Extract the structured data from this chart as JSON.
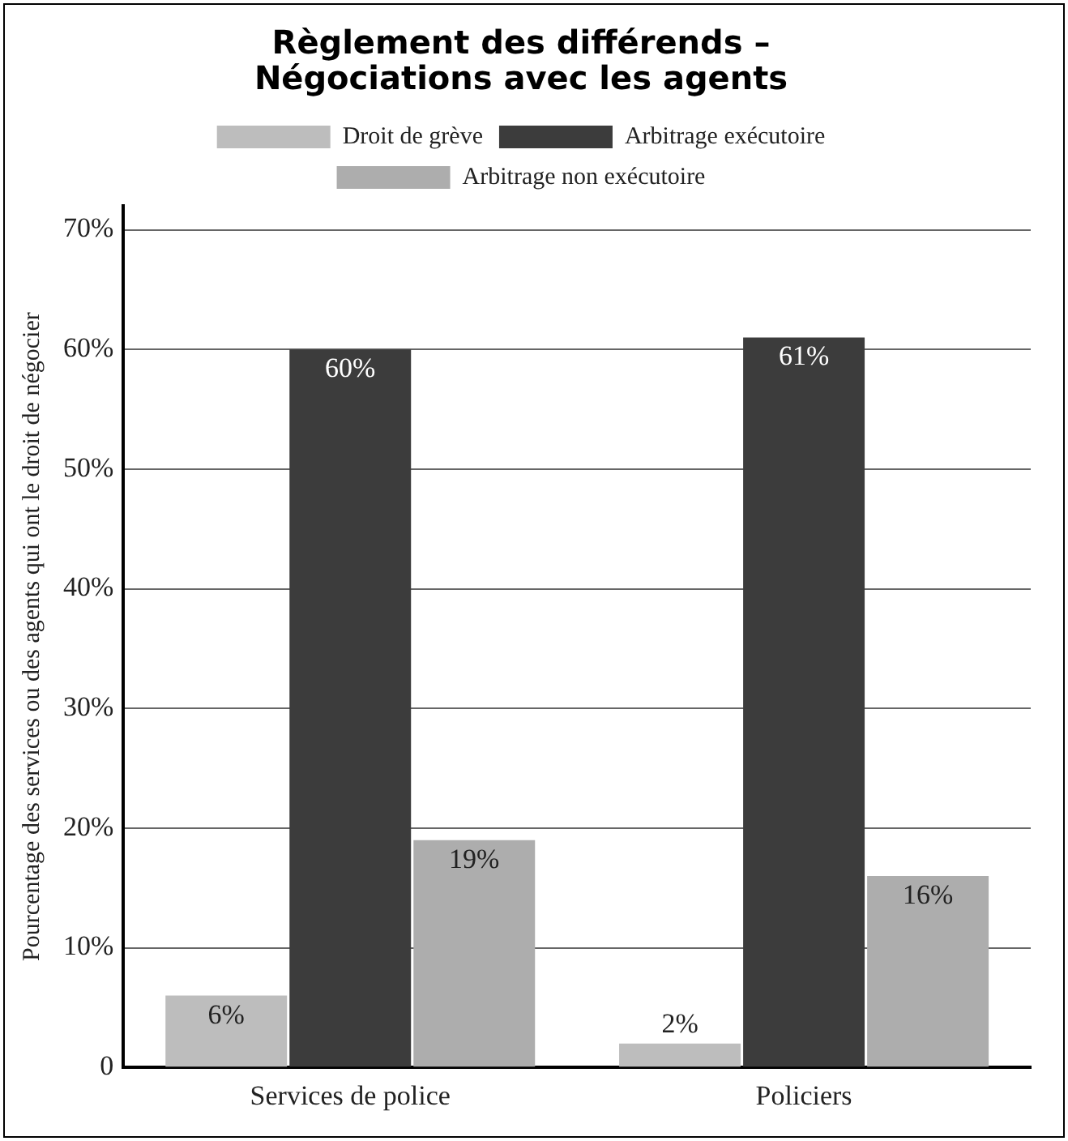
{
  "chart_data": {
    "type": "bar",
    "title": "Règlement des différends – Négociations avec les agents",
    "ylabel": "Pourcentage des services ou des agents qui ont le droit de négocier",
    "categories": [
      "Services de police",
      "Policiers"
    ],
    "series": [
      {
        "name": "Droit de grève",
        "color": "#bdbdbd",
        "values": [
          6,
          2
        ],
        "value_labels": [
          "6%",
          "2%"
        ]
      },
      {
        "name": "Arbitrage exécutoire",
        "color": "#3c3c3c",
        "values": [
          60,
          61
        ],
        "value_labels": [
          "60%",
          "61%"
        ]
      },
      {
        "name": "Arbitrage non exécutoire",
        "color": "#adadad",
        "values": [
          19,
          16
        ],
        "value_labels": [
          "19%",
          "16%"
        ]
      }
    ],
    "ylim": [
      0,
      72
    ],
    "yticks": [
      {
        "value": 0,
        "label": "0"
      },
      {
        "value": 10,
        "label": "10%"
      },
      {
        "value": 20,
        "label": "20%"
      },
      {
        "value": 30,
        "label": "30%"
      },
      {
        "value": 40,
        "label": "40%"
      },
      {
        "value": 50,
        "label": "50%"
      },
      {
        "value": 60,
        "label": "60%"
      },
      {
        "value": 70,
        "label": "70%"
      }
    ],
    "grid": "y",
    "legend": "top"
  }
}
